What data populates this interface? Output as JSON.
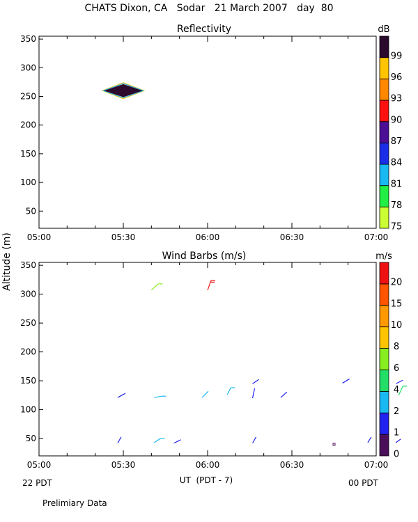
{
  "main_title": "CHATS Dixon, CA   Sodar   21 March 2007   day  80",
  "ylabel_shared": "Altitude (m)",
  "xlabel": "UT  (PDT - 7)",
  "left_date_label": "22 PDT",
  "right_date_label": "00 PDT",
  "footer_note": "Prelimiary Data",
  "chart_data": [
    {
      "type": "heatmap",
      "title": "Reflectivity",
      "xlim": [
        0,
        120
      ],
      "ylim": [
        20,
        355
      ],
      "x_tick_labels": [
        "05:00",
        "05:30",
        "06:00",
        "06:30",
        "07:00"
      ],
      "y_ticks": [
        50,
        100,
        150,
        200,
        250,
        300,
        350
      ],
      "colorbar": {
        "unit": "dB",
        "labels": [
          "75",
          "78",
          "81",
          "84",
          "87",
          "90",
          "93",
          "96",
          "99"
        ],
        "colors": [
          "#ccff33",
          "#22ee44",
          "#19b8f0",
          "#1a2ee8",
          "#4b0f96",
          "#ff1111",
          "#ff8800",
          "#ffc400",
          "#2b0a2e"
        ]
      },
      "features": [
        {
          "type": "diamond",
          "x_center": 30,
          "y_center": 260,
          "half_width_minutes": 7,
          "half_height_m": 12,
          "fill": "#2b0a2e",
          "outline": [
            "#19b8f0",
            "#ffc400"
          ]
        }
      ]
    },
    {
      "type": "scatter",
      "title": "Wind Barbs (m/s)",
      "xlim": [
        0,
        120
      ],
      "ylim": [
        20,
        355
      ],
      "x_tick_labels": [
        "05:00",
        "05:30",
        "06:00",
        "06:30",
        "07:00"
      ],
      "y_ticks": [
        50,
        100,
        150,
        200,
        250,
        300,
        350
      ],
      "colorbar": {
        "unit": "m/s",
        "labels": [
          "0",
          "1",
          "2",
          "4",
          "6",
          "8",
          "10",
          "15",
          "20"
        ],
        "colors": [
          "#4b0f5a",
          "#2222ee",
          "#19b8f0",
          "#22dd66",
          "#88ee22",
          "#ffc400",
          "#ff9900",
          "#ff5500",
          "#ee1111"
        ]
      },
      "barbs": [
        {
          "x": 28,
          "y": 121,
          "dx": 11,
          "dy": 6,
          "color": "#2222ee"
        },
        {
          "x": 28,
          "y": 42,
          "dx": 5,
          "dy": 9,
          "color": "#2222ee"
        },
        {
          "x": 40,
          "y": 307,
          "dx": 10,
          "dy": 9,
          "color": "#88ee22",
          "feathers": 1
        },
        {
          "x": 41,
          "y": 121,
          "dx": 11,
          "dy": 2,
          "color": "#19b8f0",
          "feathers": 1
        },
        {
          "x": 41,
          "y": 43,
          "dx": 9,
          "dy": 6,
          "color": "#19b8f0",
          "feathers": 1
        },
        {
          "x": 48,
          "y": 42,
          "dx": 10,
          "dy": 5,
          "color": "#2222ee"
        },
        {
          "x": 60,
          "y": 307,
          "dx": 5,
          "dy": 14,
          "color": "#ee1111",
          "feathers": 2
        },
        {
          "x": 58,
          "y": 121,
          "dx": 9,
          "dy": 9,
          "color": "#19b8f0"
        },
        {
          "x": 67,
          "y": 126,
          "dx": 5,
          "dy": 10,
          "color": "#19b8f0",
          "feathers": 1
        },
        {
          "x": 76,
          "y": 120,
          "dx": 3,
          "dy": 14,
          "color": "#2222ee"
        },
        {
          "x": 76,
          "y": 145,
          "dx": 9,
          "dy": 6,
          "color": "#2222ee"
        },
        {
          "x": 76,
          "y": 42,
          "dx": 5,
          "dy": 9,
          "color": "#2222ee"
        },
        {
          "x": 86,
          "y": 121,
          "dx": 9,
          "dy": 8,
          "color": "#2222ee"
        },
        {
          "x": 108,
          "y": 146,
          "dx": 10,
          "dy": 6,
          "color": "#2222ee"
        },
        {
          "x": 117,
          "y": 43,
          "dx": 5,
          "dy": 8,
          "color": "#2222ee"
        },
        {
          "x": 127,
          "y": 145,
          "dx": 10,
          "dy": 5,
          "color": "#2222ee"
        },
        {
          "x": 127,
          "y": 43,
          "dx": 7,
          "dy": 5,
          "color": "#2222ee"
        },
        {
          "x": 128,
          "y": 125,
          "dx": 6,
          "dy": 13,
          "color": "#22dd66",
          "feathers": 1
        }
      ],
      "calm_markers": [
        {
          "x": 105,
          "y": 40,
          "color": "#4b0f5a"
        }
      ]
    }
  ]
}
